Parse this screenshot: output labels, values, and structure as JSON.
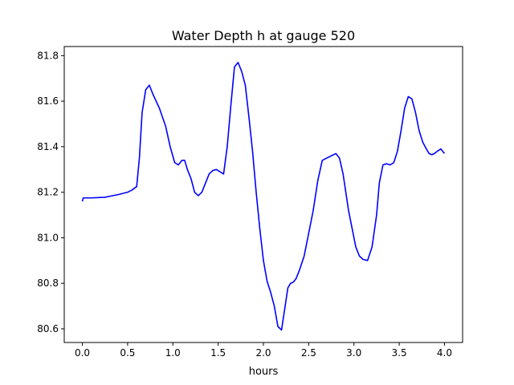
{
  "chart_data": {
    "type": "line",
    "title": "Water Depth h at gauge 520",
    "xlabel": "hours",
    "ylabel": "",
    "xlim": [
      -0.2,
      4.2
    ],
    "ylim": [
      80.54,
      81.84
    ],
    "xticks": [
      0.0,
      0.5,
      1.0,
      1.5,
      2.0,
      2.5,
      3.0,
      3.5,
      4.0
    ],
    "xtick_labels": [
      "0.0",
      "0.5",
      "1.0",
      "1.5",
      "2.0",
      "2.5",
      "3.0",
      "3.5",
      "4.0"
    ],
    "yticks": [
      80.6,
      80.8,
      81.0,
      81.2,
      81.4,
      81.6,
      81.8
    ],
    "ytick_labels": [
      "80.6",
      "80.8",
      "81.0",
      "81.2",
      "81.4",
      "81.6",
      "81.8"
    ],
    "grid": false,
    "series": [
      {
        "color": "#0000ff",
        "x": [
          0.0,
          0.01,
          0.1,
          0.2,
          0.25,
          0.3,
          0.4,
          0.5,
          0.55,
          0.6,
          0.63,
          0.66,
          0.7,
          0.74,
          0.78,
          0.85,
          0.92,
          0.97,
          1.02,
          1.06,
          1.1,
          1.13,
          1.16,
          1.2,
          1.24,
          1.28,
          1.32,
          1.36,
          1.4,
          1.44,
          1.48,
          1.52,
          1.56,
          1.6,
          1.64,
          1.68,
          1.72,
          1.76,
          1.8,
          1.84,
          1.88,
          1.92,
          1.96,
          2.0,
          2.04,
          2.08,
          2.12,
          2.16,
          2.2,
          2.24,
          2.27,
          2.3,
          2.33,
          2.36,
          2.4,
          2.45,
          2.5,
          2.55,
          2.6,
          2.65,
          2.7,
          2.75,
          2.8,
          2.84,
          2.88,
          2.91,
          2.94,
          2.98,
          3.02,
          3.06,
          3.1,
          3.15,
          3.2,
          3.25,
          3.28,
          3.32,
          3.36,
          3.4,
          3.44,
          3.48,
          3.52,
          3.56,
          3.6,
          3.64,
          3.68,
          3.72,
          3.76,
          3.8,
          3.83,
          3.86,
          3.89,
          3.92,
          3.96,
          4.0
        ],
        "values": [
          81.16,
          81.175,
          81.175,
          81.177,
          81.178,
          81.182,
          81.19,
          81.2,
          81.21,
          81.225,
          81.35,
          81.55,
          81.65,
          81.67,
          81.63,
          81.57,
          81.49,
          81.4,
          81.33,
          81.32,
          81.34,
          81.34,
          81.3,
          81.26,
          81.2,
          81.185,
          81.2,
          81.24,
          81.28,
          81.295,
          81.3,
          81.29,
          81.28,
          81.4,
          81.58,
          81.75,
          81.77,
          81.73,
          81.67,
          81.53,
          81.38,
          81.2,
          81.04,
          80.9,
          80.81,
          80.76,
          80.7,
          80.61,
          80.595,
          80.7,
          80.78,
          80.8,
          80.805,
          80.82,
          80.86,
          80.92,
          81.02,
          81.12,
          81.25,
          81.34,
          81.35,
          81.36,
          81.37,
          81.35,
          81.28,
          81.2,
          81.12,
          81.04,
          80.96,
          80.92,
          80.905,
          80.9,
          80.96,
          81.1,
          81.24,
          81.32,
          81.325,
          81.32,
          81.33,
          81.38,
          81.47,
          81.57,
          81.62,
          81.61,
          81.55,
          81.47,
          81.42,
          81.39,
          81.37,
          81.365,
          81.37,
          81.38,
          81.39,
          81.37
        ]
      }
    ]
  }
}
